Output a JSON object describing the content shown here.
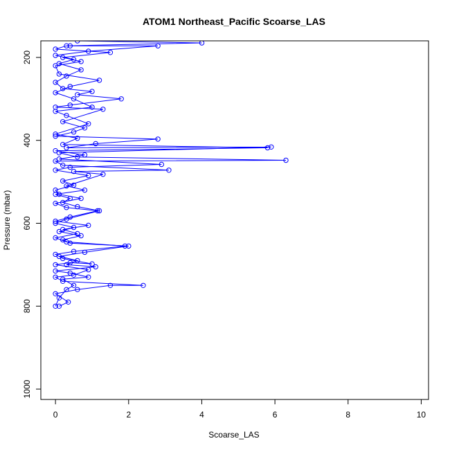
{
  "chart_data": {
    "type": "scatter",
    "title": "ATOM1 Northeast_Pacific Scoarse_LAS",
    "xlabel": "Scoarse_LAS",
    "ylabel": "Pressure (mbar)",
    "xlim": [
      -0.4,
      10.2
    ],
    "ylim": [
      1025,
      160
    ],
    "y_reversed": true,
    "x_ticks": [
      0,
      2,
      4,
      6,
      8,
      10
    ],
    "y_ticks": [
      200,
      400,
      600,
      800,
      1000
    ],
    "grid": false,
    "series_color": "#0000ff",
    "marker": "open-circle",
    "series": [
      {
        "points": [
          [
            0.0,
            800
          ],
          [
            0.1,
            780
          ],
          [
            0.3,
            760
          ],
          [
            0.5,
            750
          ],
          [
            0.2,
            735
          ],
          [
            0.9,
            730
          ],
          [
            0.4,
            720
          ],
          [
            0.0,
            715
          ],
          [
            1.1,
            705
          ],
          [
            0.3,
            700
          ],
          [
            0.6,
            690
          ],
          [
            0.1,
            680
          ],
          [
            0.8,
            670
          ],
          [
            2.0,
            655
          ],
          [
            0.4,
            648
          ],
          [
            0.2,
            640
          ],
          [
            0.7,
            630
          ],
          [
            0.1,
            620
          ],
          [
            0.5,
            610
          ],
          [
            0.0,
            600
          ],
          [
            0.3,
            590
          ],
          [
            1.2,
            570
          ],
          [
            0.6,
            560
          ],
          [
            0.2,
            550
          ],
          [
            0.4,
            540
          ],
          [
            0.0,
            530
          ],
          [
            0.8,
            520
          ],
          [
            0.3,
            510
          ],
          [
            1.3,
            482
          ],
          [
            0.5,
            475
          ],
          [
            3.1,
            472
          ],
          [
            0.2,
            460
          ],
          [
            0.0,
            450
          ],
          [
            6.3,
            448
          ],
          [
            0.6,
            440
          ],
          [
            0.1,
            430
          ],
          [
            5.9,
            416
          ],
          [
            0.3,
            418
          ],
          [
            1.1,
            408
          ],
          [
            2.8,
            397
          ],
          [
            0.0,
            390
          ],
          [
            0.5,
            380
          ],
          [
            0.8,
            370
          ],
          [
            0.2,
            355
          ],
          [
            1.3,
            325
          ],
          [
            0.0,
            320
          ],
          [
            0.4,
            315
          ],
          [
            1.8,
            300
          ],
          [
            0.6,
            290
          ],
          [
            1.0,
            282
          ],
          [
            0.2,
            275
          ],
          [
            0.0,
            260
          ],
          [
            0.3,
            245
          ],
          [
            0.7,
            230
          ],
          [
            0.1,
            215
          ],
          [
            0.5,
            205
          ],
          [
            0.0,
            195
          ],
          [
            0.9,
            185
          ],
          [
            2.8,
            172
          ],
          [
            0.4,
            172
          ]
        ]
      },
      {
        "points": [
          [
            0.1,
            800
          ],
          [
            0.35,
            790
          ],
          [
            0.0,
            770
          ],
          [
            0.6,
            760
          ],
          [
            1.5,
            750
          ],
          [
            2.4,
            750
          ],
          [
            0.2,
            740
          ],
          [
            0.0,
            730
          ],
          [
            0.5,
            725
          ],
          [
            0.9,
            712
          ],
          [
            0.0,
            700
          ],
          [
            0.4,
            695
          ],
          [
            1.0,
            698
          ],
          [
            0.2,
            685
          ],
          [
            0.0,
            675
          ],
          [
            0.5,
            668
          ],
          [
            1.9,
            655
          ],
          [
            0.3,
            645
          ],
          [
            0.0,
            635
          ],
          [
            0.6,
            625
          ],
          [
            0.2,
            615
          ],
          [
            0.9,
            605
          ],
          [
            0.0,
            595
          ],
          [
            0.4,
            585
          ],
          [
            1.15,
            570
          ],
          [
            0.3,
            562
          ],
          [
            0.0,
            552
          ],
          [
            0.7,
            540
          ],
          [
            0.1,
            530
          ],
          [
            0.0,
            520
          ],
          [
            0.5,
            508
          ],
          [
            0.2,
            498
          ],
          [
            0.9,
            485
          ],
          [
            0.0,
            472
          ],
          [
            0.4,
            465
          ],
          [
            2.9,
            458
          ],
          [
            0.1,
            445
          ],
          [
            0.8,
            435
          ],
          [
            0.0,
            425
          ],
          [
            5.8,
            418
          ],
          [
            0.2,
            410
          ],
          [
            0.6,
            395
          ],
          [
            0.0,
            385
          ],
          [
            0.9,
            360
          ],
          [
            0.3,
            340
          ],
          [
            0.0,
            330
          ],
          [
            1.0,
            320
          ],
          [
            0.5,
            300
          ],
          [
            0.0,
            285
          ],
          [
            0.4,
            270
          ],
          [
            1.2,
            255
          ],
          [
            0.1,
            240
          ],
          [
            0.0,
            220
          ],
          [
            0.7,
            210
          ],
          [
            0.2,
            200
          ],
          [
            1.5,
            188
          ],
          [
            0.0,
            180
          ],
          [
            0.3,
            172
          ],
          [
            4.0,
            165
          ],
          [
            0.6,
            160
          ]
        ]
      }
    ]
  }
}
